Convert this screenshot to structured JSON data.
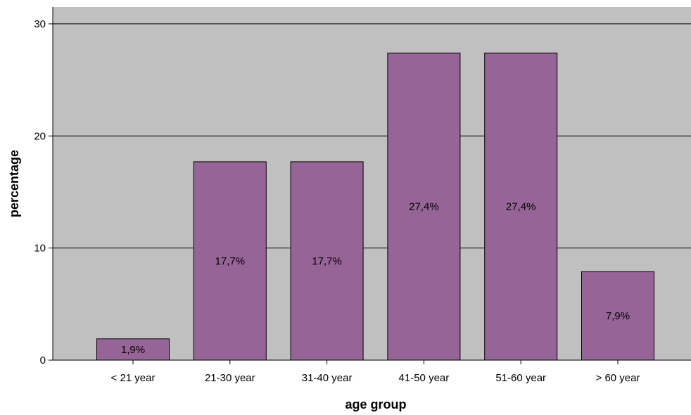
{
  "chart_data": {
    "type": "bar",
    "categories": [
      "< 21 year",
      "21-30 year",
      "31-40 year",
      "41-50 year",
      "51-60 year",
      "> 60 year"
    ],
    "values": [
      1.9,
      17.7,
      17.7,
      27.4,
      27.4,
      7.9
    ],
    "data_labels": [
      "1,9%",
      "17,7%",
      "17,7%",
      "27,4%",
      "27,4%",
      "7,9%"
    ],
    "xlabel": "age group",
    "ylabel": "percentage",
    "ylim": [
      0,
      31.5
    ],
    "yticks": [
      0,
      10,
      20,
      30
    ],
    "ytick_labels": [
      "0",
      "10",
      "20",
      "30"
    ],
    "grid": true,
    "colors": {
      "bar_fill": "#966496",
      "plot_background": "#c0c0c0",
      "gridline": "#000000"
    }
  }
}
